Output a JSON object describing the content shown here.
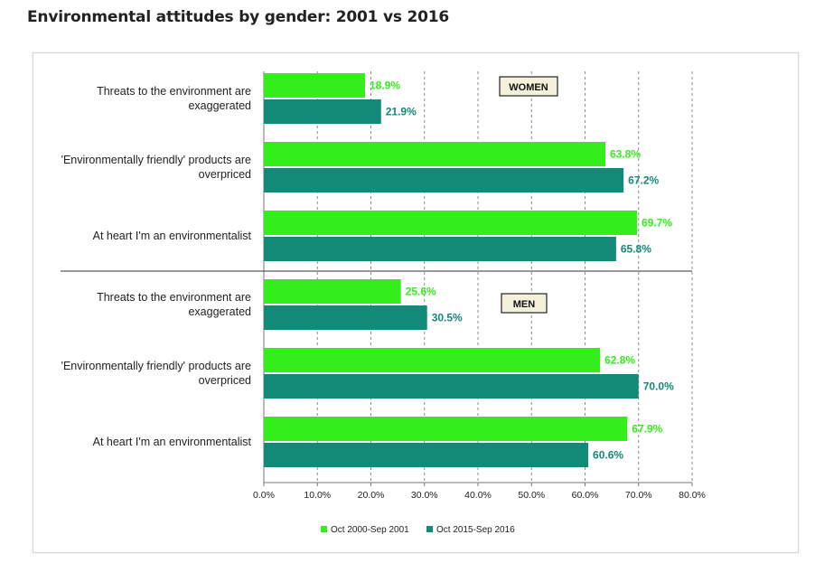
{
  "title": "Environmental attitudes by gender: 2001 vs 2016",
  "chart_data": {
    "type": "bar",
    "orientation": "horizontal",
    "xlim": [
      0,
      80
    ],
    "x_ticks": [
      "0.0%",
      "10.0%",
      "20.0%",
      "30.0%",
      "40.0%",
      "50.0%",
      "60.0%",
      "70.0%",
      "80.0%"
    ],
    "grid": "vertical dashed",
    "legend_position": "bottom",
    "series": [
      {
        "name": "Oct 2000-Sep 2001",
        "color": "#33ee1a"
      },
      {
        "name": "Oct 2015-Sep 2016",
        "color": "#138a78"
      }
    ],
    "groups": [
      {
        "label": "WOMEN",
        "categories": [
          {
            "label": [
              "Threats to the environment are",
              "exaggerated"
            ],
            "values": [
              18.9,
              21.9
            ],
            "value_labels": [
              "18.9%",
              "21.9%"
            ]
          },
          {
            "label": [
              "'Environmentally friendly' products are",
              "overpriced"
            ],
            "values": [
              63.8,
              67.2
            ],
            "value_labels": [
              "63.8%",
              "67.2%"
            ]
          },
          {
            "label": [
              "At heart I'm an environmentalist"
            ],
            "values": [
              69.7,
              65.8
            ],
            "value_labels": [
              "69.7%",
              "65.8%"
            ]
          }
        ]
      },
      {
        "label": "MEN",
        "categories": [
          {
            "label": [
              "Threats to the environment are",
              "exaggerated"
            ],
            "values": [
              25.6,
              30.5
            ],
            "value_labels": [
              "25.6%",
              "30.5%"
            ]
          },
          {
            "label": [
              "'Environmentally friendly' products are",
              "overpriced"
            ],
            "values": [
              62.8,
              70.0
            ],
            "value_labels": [
              "62.8%",
              "70.0%"
            ]
          },
          {
            "label": [
              "At heart I'm an environmentalist"
            ],
            "values": [
              67.9,
              60.6
            ],
            "value_labels": [
              "67.9%",
              "60.6%"
            ]
          }
        ]
      }
    ]
  }
}
